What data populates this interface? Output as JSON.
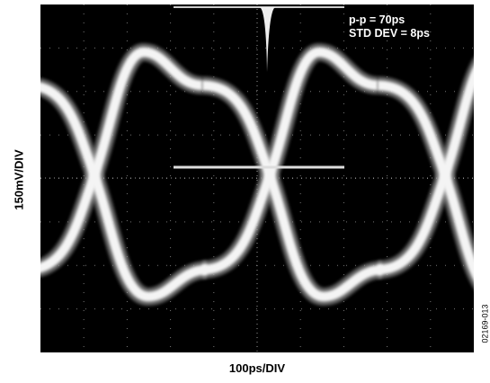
{
  "screen": {
    "annotations": [
      "p-p = 70ps",
      "STD DEV = 8ps"
    ],
    "y_axis_label": "150mV/DIV",
    "x_axis_label": "100ps/DIV",
    "figure_code": "02169-013"
  }
}
